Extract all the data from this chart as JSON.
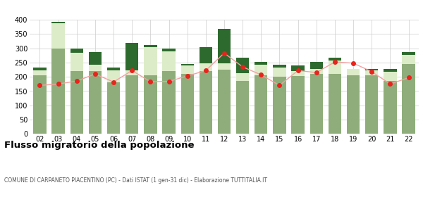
{
  "years": [
    "02",
    "03",
    "04",
    "05",
    "06",
    "07",
    "08",
    "09",
    "10",
    "11",
    "12",
    "13",
    "14",
    "15",
    "16",
    "17",
    "18",
    "19",
    "20",
    "21",
    "22"
  ],
  "iscritti_altri_comuni": [
    205,
    300,
    220,
    220,
    180,
    205,
    205,
    220,
    210,
    220,
    225,
    185,
    205,
    200,
    202,
    210,
    210,
    205,
    205,
    185,
    245
  ],
  "iscritti_estero": [
    18,
    88,
    65,
    22,
    42,
    18,
    98,
    68,
    30,
    28,
    22,
    28,
    38,
    32,
    18,
    18,
    48,
    22,
    18,
    32,
    32
  ],
  "iscritti_altri": [
    10,
    5,
    15,
    45,
    10,
    95,
    8,
    10,
    5,
    55,
    120,
    55,
    10,
    10,
    20,
    25,
    10,
    0,
    5,
    10,
    10
  ],
  "cancellati": [
    170,
    175,
    185,
    210,
    182,
    222,
    183,
    184,
    203,
    222,
    283,
    235,
    207,
    170,
    222,
    215,
    252,
    248,
    218,
    175,
    197
  ],
  "color_altri_comuni": "#8fad7a",
  "color_estero": "#ddecc8",
  "color_altri": "#2d6a2d",
  "color_cancellati": "#e8241c",
  "color_cancellati_line": "#f5a0a0",
  "title": "Flusso migratorio della popolazione",
  "subtitle": "COMUNE DI CARPANETO PIACENTINO (PC) - Dati ISTAT (1 gen-31 dic) - Elaborazione TUTTITALIA.IT",
  "ylim": [
    0,
    400
  ],
  "yticks": [
    0,
    50,
    100,
    150,
    200,
    250,
    300,
    350,
    400
  ],
  "background_color": "#ffffff",
  "grid_color": "#cccccc"
}
